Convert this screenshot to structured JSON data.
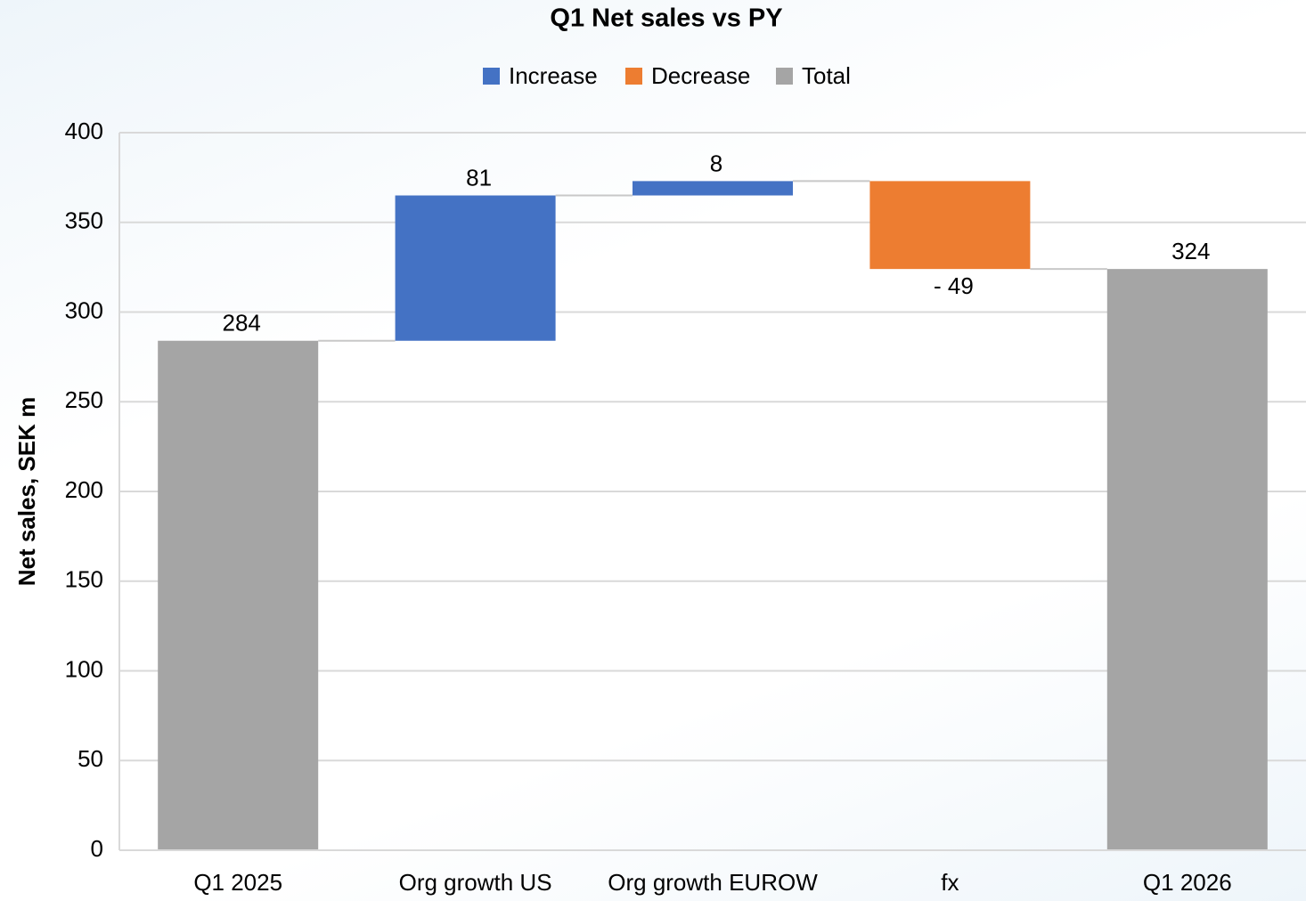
{
  "chart_data": {
    "type": "waterfall",
    "title": "Q1 Net sales vs PY",
    "y_label": "Net sales, SEK m",
    "categories": [
      "Q1 2025",
      "Org growth US",
      "Org growth EUROW",
      "fx",
      "Q1 2026"
    ],
    "values": [
      284,
      81,
      8,
      -49,
      324
    ],
    "value_labels": [
      "284",
      "81",
      "8",
      "- 49",
      "324"
    ],
    "is_total": [
      true,
      false,
      false,
      false,
      true
    ],
    "legend": [
      {
        "name": "Increase",
        "color": "#4472c4"
      },
      {
        "name": "Decrease",
        "color": "#ed7d31"
      },
      {
        "name": "Total",
        "color": "#a5a5a5"
      }
    ],
    "ylim": [
      0,
      400
    ],
    "yticks": [
      0,
      50,
      100,
      150,
      200,
      250,
      300,
      350,
      400
    ],
    "grid": true
  }
}
